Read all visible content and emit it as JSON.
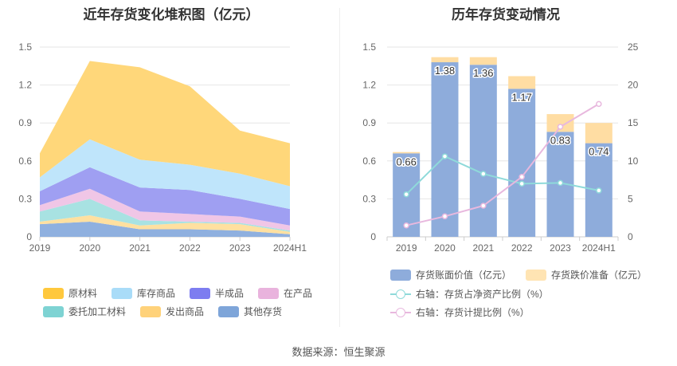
{
  "chart_data": [
    {
      "type": "area",
      "stacked": true,
      "title": "近年存货变化堆积图（亿元）",
      "categories": [
        "2019",
        "2020",
        "2021",
        "2022",
        "2023",
        "2024H1"
      ],
      "ylim": [
        0,
        1.5
      ],
      "yticks": [
        "0",
        "0.3",
        "0.6",
        "0.9",
        "1.2",
        "1.5"
      ],
      "series": [
        {
          "name": "其他存货",
          "color": "#8fb0df",
          "values": [
            0.1,
            0.12,
            0.06,
            0.06,
            0.05,
            0.02
          ]
        },
        {
          "name": "发出商品",
          "color": "#ffe0a0",
          "values": [
            0.02,
            0.05,
            0.03,
            0.05,
            0.05,
            0.02
          ]
        },
        {
          "name": "委托加工材料",
          "color": "#a8e2e2",
          "values": [
            0.08,
            0.13,
            0.04,
            0.01,
            0.01,
            0.01
          ]
        },
        {
          "name": "在产品",
          "color": "#f0c6e6",
          "values": [
            0.05,
            0.08,
            0.07,
            0.06,
            0.05,
            0.04
          ]
        },
        {
          "name": "半成品",
          "color": "#9f9ff2",
          "values": [
            0.11,
            0.17,
            0.19,
            0.19,
            0.14,
            0.13
          ]
        },
        {
          "name": "库存商品",
          "color": "#bfe5fb",
          "values": [
            0.11,
            0.22,
            0.22,
            0.2,
            0.2,
            0.18
          ]
        },
        {
          "name": "原材料",
          "color": "#ffd77a",
          "values": [
            0.19,
            0.62,
            0.73,
            0.62,
            0.34,
            0.34
          ]
        }
      ],
      "legend_order": [
        "原材料",
        "库存商品",
        "半成品",
        "在产品",
        "委托加工材料",
        "发出商品",
        "其他存货"
      ],
      "legend_colors": [
        "#ffc83d",
        "#a9dcf8",
        "#7d7df0",
        "#e9b3dd",
        "#7ed3d3",
        "#ffd27a",
        "#7ea5d9"
      ],
      "grid": true,
      "legend_position": "bottom"
    },
    {
      "type": "bar",
      "stacked": true,
      "title": "历年存货变动情况",
      "categories": [
        "2019",
        "2020",
        "2021",
        "2022",
        "2023",
        "2024H1"
      ],
      "ylim_left": [
        0,
        1.5
      ],
      "yticks_left": [
        "0",
        "0.3",
        "0.6",
        "0.9",
        "1.2",
        "1.5"
      ],
      "ylim_right": [
        0,
        25
      ],
      "yticks_right": [
        "0",
        "5",
        "10",
        "15",
        "20",
        "25"
      ],
      "bars": [
        {
          "name": "存货账面价值（亿元）",
          "color": "#8eacdb",
          "values": [
            0.66,
            1.38,
            1.36,
            1.17,
            0.83,
            0.74
          ]
        },
        {
          "name": "存货跌价准备（亿元）",
          "color": "#ffdda3",
          "values": [
            0.01,
            0.04,
            0.06,
            0.1,
            0.14,
            0.16
          ]
        }
      ],
      "bar_labels": [
        "0.66",
        "1.38",
        "1.36",
        "1.17",
        "0.83",
        "0.74"
      ],
      "lines": [
        {
          "name": "右轴：存货占净资产比例（%）",
          "color": "#8fdada",
          "values": [
            5.6,
            10.6,
            8.3,
            7.0,
            7.1,
            6.1
          ]
        },
        {
          "name": "右轴：存货计提比例（%）",
          "color": "#e8b8de",
          "values": [
            1.5,
            2.7,
            4.1,
            7.9,
            14.5,
            17.5
          ]
        }
      ],
      "grid": true,
      "legend_position": "bottom"
    }
  ],
  "source": "数据来源：恒生聚源"
}
